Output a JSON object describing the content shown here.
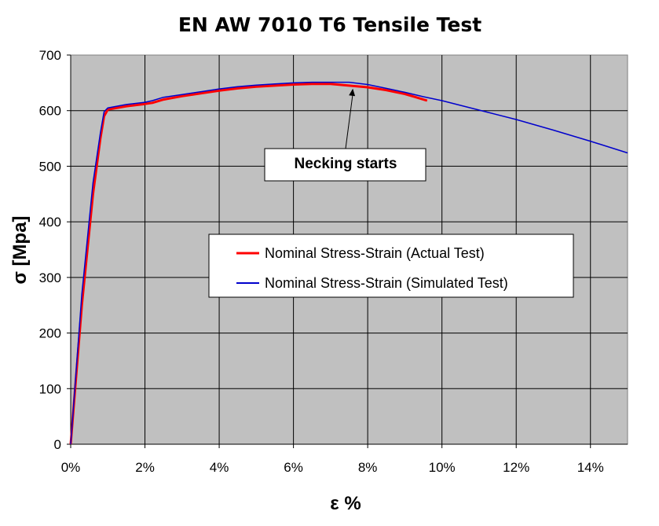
{
  "chart_data": {
    "type": "line",
    "title": "EN AW 7010 T6 Tensile Test",
    "xlabel": "ε %",
    "ylabel": "σ [Mpa]",
    "xlim": [
      0,
      15
    ],
    "ylim": [
      0,
      700
    ],
    "x_ticks": [
      "0%",
      "2%",
      "4%",
      "6%",
      "8%",
      "10%",
      "12%",
      "14%"
    ],
    "x_tick_values": [
      0,
      2,
      4,
      6,
      8,
      10,
      12,
      14
    ],
    "y_ticks": [
      "0",
      "100",
      "200",
      "300",
      "400",
      "500",
      "600",
      "700"
    ],
    "y_tick_values": [
      0,
      100,
      200,
      300,
      400,
      500,
      600,
      700
    ],
    "grid": true,
    "legend_position": "center-right",
    "background": "#c0c0c0",
    "series": [
      {
        "name": "Nominal Stress-Strain (Actual Test)",
        "color": "#ff0000",
        "x": [
          0,
          0.3,
          0.6,
          0.8,
          0.9,
          1.0,
          1.5,
          2.0,
          2.2,
          2.5,
          3.0,
          3.5,
          4.0,
          4.5,
          5.0,
          5.5,
          6.0,
          6.5,
          7.0,
          7.5,
          8.0,
          8.5,
          9.0,
          9.3,
          9.6
        ],
        "y": [
          0,
          250,
          450,
          550,
          590,
          602,
          608,
          612,
          614,
          620,
          626,
          631,
          636,
          640,
          643,
          645,
          647,
          648,
          648,
          645,
          642,
          637,
          630,
          624,
          618
        ]
      },
      {
        "name": "Nominal Stress-Strain (Simulated Test)",
        "color": "#0000cc",
        "x": [
          0,
          0.3,
          0.6,
          0.8,
          0.9,
          1.0,
          1.5,
          2.0,
          2.2,
          2.5,
          3.0,
          3.5,
          4.0,
          4.5,
          5.0,
          5.5,
          6.0,
          6.5,
          7.0,
          7.5,
          8.0,
          8.5,
          9.0,
          9.5,
          10.0,
          11.0,
          12.0,
          13.0,
          14.0,
          15.0
        ],
        "y": [
          0,
          270,
          470,
          560,
          598,
          605,
          611,
          615,
          618,
          624,
          629,
          634,
          639,
          643,
          646,
          648,
          650,
          651,
          651,
          651,
          647,
          640,
          633,
          625,
          618,
          601,
          584,
          565,
          545,
          524
        ]
      }
    ],
    "annotation": {
      "text": "Necking starts",
      "x": 7.6,
      "y": 648
    }
  }
}
